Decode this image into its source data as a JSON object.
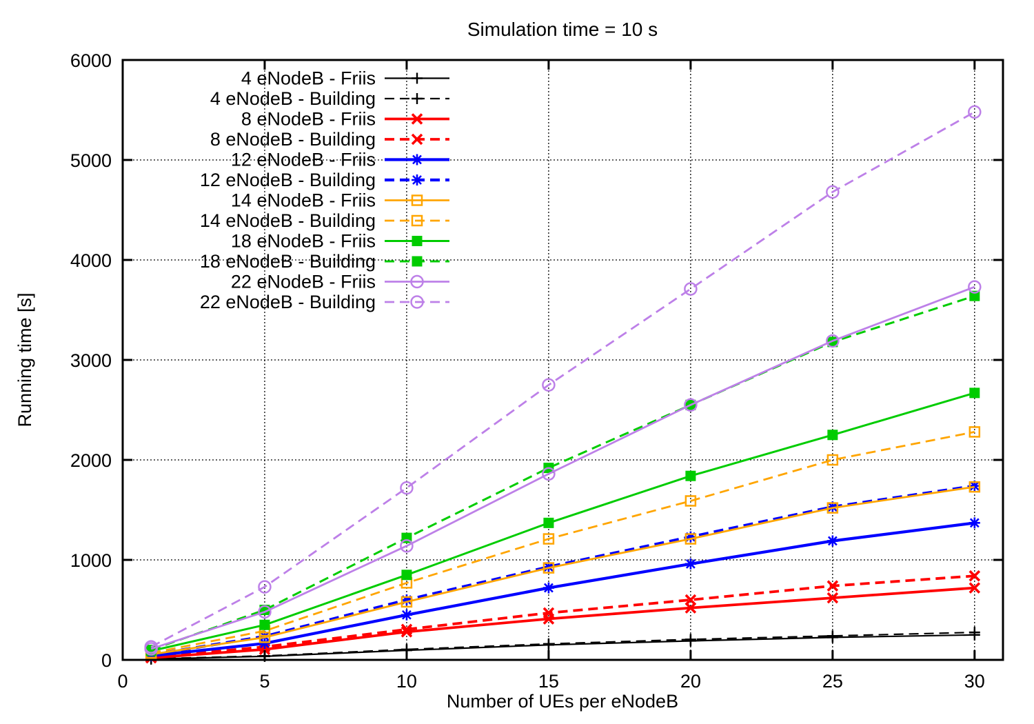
{
  "chart_data": {
    "type": "line",
    "title": "Simulation time = 10 s",
    "xlabel": "Number of UEs per eNodeB",
    "ylabel": "Running time [s]",
    "xlim": [
      0,
      31
    ],
    "ylim": [
      0,
      6000
    ],
    "xticks": [
      0,
      5,
      10,
      15,
      20,
      25,
      30
    ],
    "yticks": [
      0,
      1000,
      2000,
      3000,
      4000,
      5000,
      6000
    ],
    "grid": true,
    "legend_position": "top-left-inside",
    "x": [
      1,
      5,
      10,
      15,
      20,
      25,
      30
    ],
    "series": [
      {
        "name": "4 eNodeB - Friis",
        "color": "#000000",
        "line": "solid",
        "marker": "plus",
        "values": [
          8,
          35,
          95,
          150,
          190,
          225,
          250
        ]
      },
      {
        "name": "4 eNodeB - Building",
        "color": "#000000",
        "line": "dashed",
        "marker": "plus",
        "values": [
          10,
          40,
          105,
          160,
          205,
          240,
          275
        ]
      },
      {
        "name": "8 eNodeB - Friis",
        "color": "#ff0000",
        "line": "solid",
        "marker": "cross",
        "values": [
          20,
          105,
          280,
          410,
          520,
          620,
          720
        ]
      },
      {
        "name": "8 eNodeB - Building",
        "color": "#ff0000",
        "line": "dashed",
        "marker": "cross",
        "values": [
          25,
          130,
          305,
          470,
          600,
          740,
          840
        ]
      },
      {
        "name": "12 eNodeB - Friis",
        "color": "#0000ff",
        "line": "solid",
        "marker": "star",
        "values": [
          40,
          165,
          450,
          720,
          960,
          1190,
          1370
        ]
      },
      {
        "name": "12 eNodeB - Building",
        "color": "#0000ff",
        "line": "dashed",
        "marker": "star",
        "values": [
          50,
          235,
          600,
          930,
          1230,
          1530,
          1740
        ]
      },
      {
        "name": "14 eNodeB - Friis",
        "color": "#ffa500",
        "line": "solid",
        "marker": "square-open",
        "values": [
          55,
          225,
          580,
          920,
          1210,
          1520,
          1730
        ]
      },
      {
        "name": "14 eNodeB - Building",
        "color": "#ffa500",
        "line": "dashed",
        "marker": "square-open",
        "values": [
          70,
          290,
          770,
          1210,
          1590,
          2000,
          2280
        ]
      },
      {
        "name": "18 eNodeB - Friis",
        "color": "#00cc00",
        "line": "solid",
        "marker": "square-filled",
        "values": [
          90,
          350,
          850,
          1370,
          1840,
          2250,
          2670
        ]
      },
      {
        "name": "18 eNodeB - Building",
        "color": "#00cc00",
        "line": "dashed",
        "marker": "square-filled",
        "values": [
          100,
          500,
          1220,
          1920,
          2550,
          3180,
          3640
        ]
      },
      {
        "name": "22 eNodeB - Friis",
        "color": "#bd80e8",
        "line": "solid",
        "marker": "circle-open",
        "values": [
          110,
          480,
          1140,
          1860,
          2550,
          3190,
          3730
        ]
      },
      {
        "name": "22 eNodeB - Building",
        "color": "#bd80e8",
        "line": "dashed",
        "marker": "circle-open",
        "values": [
          130,
          730,
          1720,
          2750,
          3710,
          4680,
          5480
        ]
      }
    ]
  }
}
